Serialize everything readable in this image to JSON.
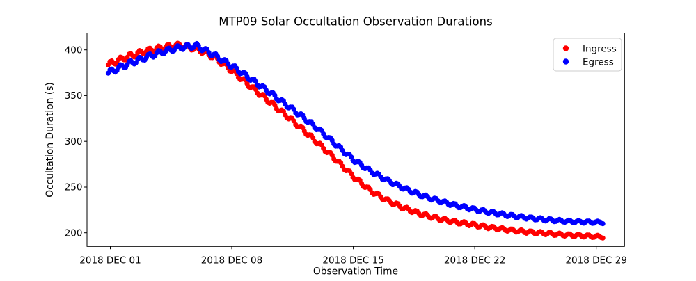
{
  "chart_data": {
    "type": "scatter",
    "title": "MTP09 Solar Occultation Observation Durations",
    "xlabel": "Observation Time",
    "ylabel": "Occultation Duration (s)",
    "x_tick_labels": [
      "2018 DEC 01",
      "2018 DEC 08",
      "2018 DEC 15",
      "2018 DEC 22",
      "2018 DEC 29"
    ],
    "x_tick_days": [
      0,
      7,
      14,
      21,
      28
    ],
    "y_ticks": [
      200,
      250,
      300,
      350,
      400
    ],
    "xlim_days": [
      -1.344,
      29.63
    ],
    "ylim": [
      185.1,
      418.4
    ],
    "grid": false,
    "legend": {
      "position": "upper right",
      "entries": [
        {
          "label": "Ingress",
          "color": "#ff0000"
        },
        {
          "label": "Egress",
          "color": "#0000ff"
        }
      ]
    },
    "x_days": [
      0,
      1,
      2,
      3,
      4,
      5,
      6,
      7,
      8,
      9,
      10,
      11,
      12,
      13,
      14,
      15,
      16,
      17,
      18,
      19,
      20,
      21,
      22,
      23,
      24,
      25,
      26,
      27,
      28
    ],
    "series": [
      {
        "name": "Ingress",
        "color": "#ff0000",
        "values": [
          385,
          392.5,
          398.5,
          402.5,
          405,
          401,
          392,
          377.5,
          361.5,
          346,
          330.5,
          314.5,
          297.5,
          280,
          261.5,
          246,
          235,
          226.5,
          220,
          215,
          211.5,
          208.5,
          205.5,
          203,
          201,
          199.5,
          198,
          197,
          196
        ]
      },
      {
        "name": "Egress",
        "color": "#0000ff",
        "values": [
          376,
          384.5,
          391.5,
          398,
          402.5,
          404.5,
          394,
          382.5,
          369.5,
          356,
          342,
          328,
          313,
          296.5,
          280,
          267.5,
          257,
          248,
          240.5,
          234.5,
          229.5,
          225.5,
          222,
          219,
          216.5,
          214.5,
          213,
          212,
          211.5
        ]
      }
    ],
    "render": {
      "span_days": [
        -0.12,
        28.42
      ],
      "sample_step_days": 0.1,
      "marker_radius_px": 3.6,
      "wiggle_amplitude_s": 2.8,
      "wiggle_decay_per_day": 0.05,
      "wiggle_period_days": 0.55,
      "wiggle_phase": 1.2
    }
  }
}
